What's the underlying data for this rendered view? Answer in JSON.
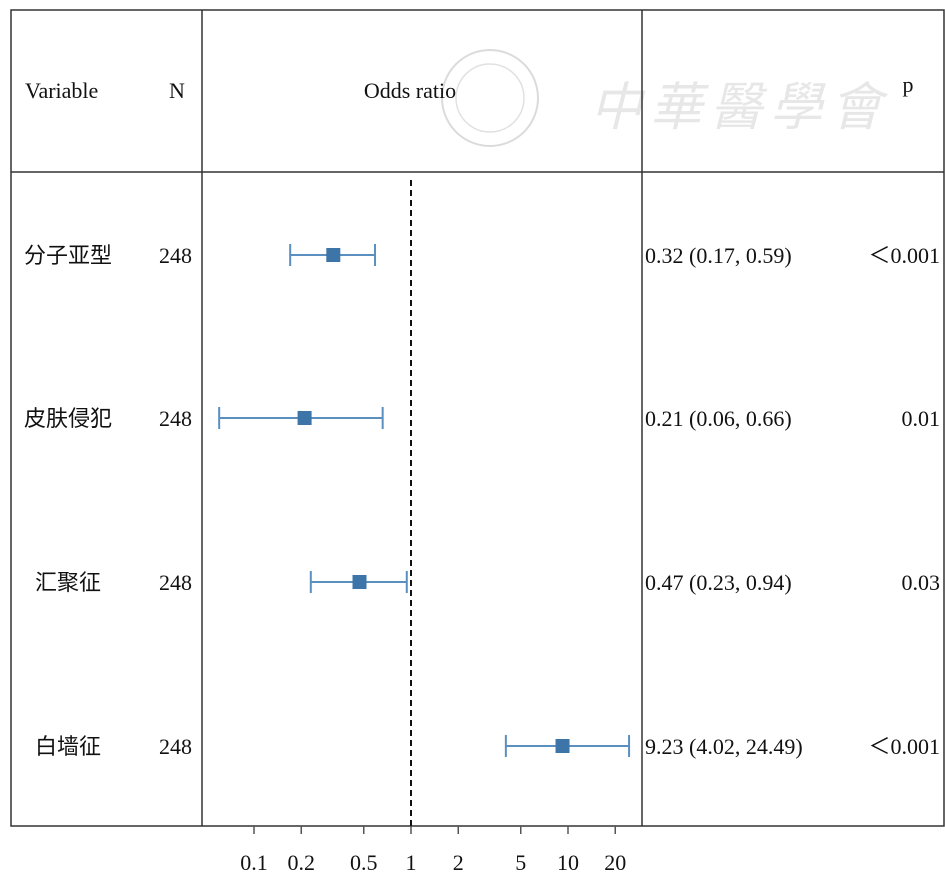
{
  "chart_data": {
    "type": "forest",
    "headers": {
      "variable": "Variable",
      "n": "N",
      "plot": "Odds ratio",
      "p": "p"
    },
    "x_scale": "log",
    "xlim": [
      0.05,
      30
    ],
    "reference_line": 1,
    "x_ticks": [
      0.1,
      0.2,
      0.5,
      1,
      2,
      5,
      10,
      20
    ],
    "x_tick_labels": [
      "0.1",
      "0.2",
      "0.5",
      "1",
      "2",
      "5",
      "10",
      "20"
    ],
    "rows": [
      {
        "variable": "分子亚型",
        "n": "248",
        "or": 0.32,
        "lower": 0.17,
        "upper": 0.59,
        "ci_text": "0.32 (0.17, 0.59)",
        "p": "＜0.001"
      },
      {
        "variable": "皮肤侵犯",
        "n": "248",
        "or": 0.21,
        "lower": 0.06,
        "upper": 0.66,
        "ci_text": "0.21 (0.06, 0.66)",
        "p": "0.01"
      },
      {
        "variable": "汇聚征",
        "n": "248",
        "or": 0.47,
        "lower": 0.23,
        "upper": 0.94,
        "ci_text": "0.47 (0.23, 0.94)",
        "p": "0.03"
      },
      {
        "variable": "白墙征",
        "n": "248",
        "or": 9.23,
        "lower": 4.02,
        "upper": 24.49,
        "ci_text": "9.23 (4.02, 24.49)",
        "p": "＜0.001"
      }
    ],
    "colors": {
      "marker": "#3d75a8",
      "ci": "#5b8fc0",
      "frame": "#333333"
    }
  },
  "watermark": {
    "text": "中華醫學會"
  }
}
